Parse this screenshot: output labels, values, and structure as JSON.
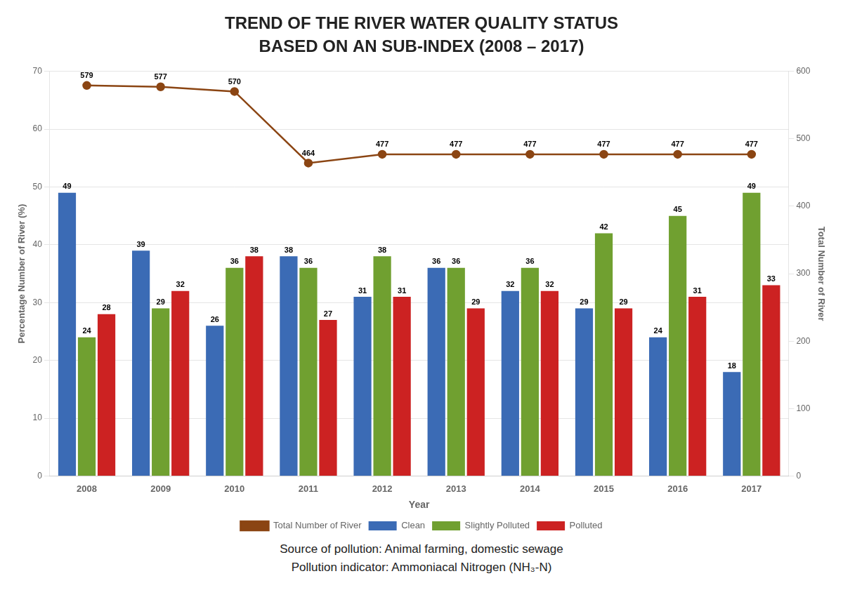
{
  "chart_data": {
    "type": "bar",
    "title": "TREND OF THE RIVER WATER QUALITY STATUS",
    "subtitle": "BASED ON AN SUB-INDEX (2008 – 2017)",
    "xlabel": "Year",
    "ylabel": "Percentage Number of River (%)",
    "y2label": "Total Number of River",
    "categories": [
      "2008",
      "2009",
      "2010",
      "2011",
      "2012",
      "2013",
      "2014",
      "2015",
      "2016",
      "2017"
    ],
    "series": [
      {
        "name": "Clean",
        "color": "#3B6BB5",
        "values": [
          49,
          39,
          26,
          38,
          31,
          36,
          32,
          29,
          24,
          18
        ]
      },
      {
        "name": "Slightly Polluted",
        "color": "#70A030",
        "values": [
          24,
          29,
          36,
          36,
          38,
          36,
          36,
          42,
          45,
          49
        ]
      },
      {
        "name": "Polluted",
        "color": "#CC2222",
        "values": [
          28,
          32,
          38,
          27,
          31,
          29,
          32,
          29,
          31,
          33
        ]
      },
      {
        "name": "Total Number of River",
        "type": "line",
        "axis": "y2",
        "color": "#8B4513",
        "marker": "circle",
        "values": [
          579,
          577,
          570,
          464,
          477,
          477,
          477,
          477,
          477,
          477
        ]
      }
    ],
    "ylim": [
      0,
      70
    ],
    "yticks": [
      0,
      10,
      20,
      30,
      40,
      50,
      60,
      70
    ],
    "y2lim": [
      0,
      600
    ],
    "y2ticks": [
      0,
      100,
      200,
      300,
      400,
      500,
      600
    ],
    "grid": true,
    "legend": "bottom",
    "data_labels": true,
    "annotations": [
      "Source of pollution: Animal farming, domestic sewage",
      "Pollution indicator: Ammoniacal Nitrogen (NH₃-N)"
    ]
  }
}
